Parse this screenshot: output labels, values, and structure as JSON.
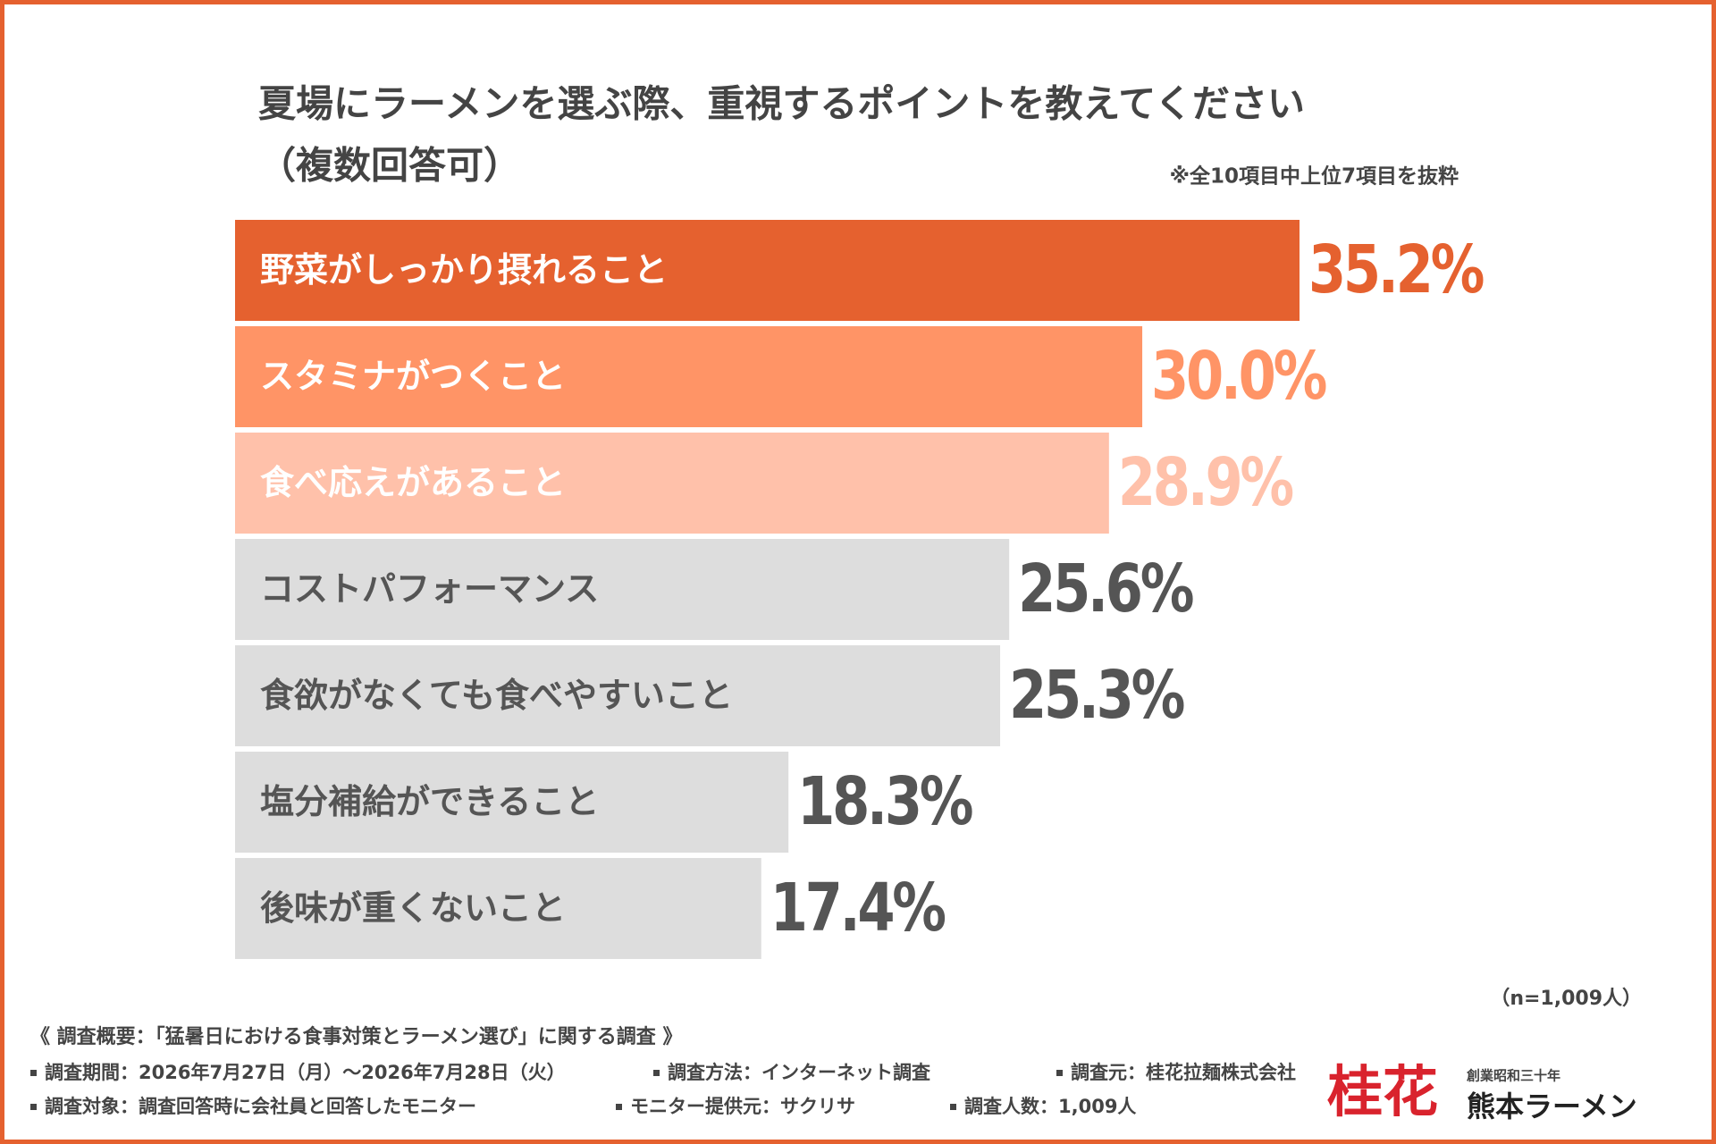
{
  "chart_data": {
    "type": "bar",
    "orientation": "horizontal",
    "title": "夏場にラーメンを選ぶ際、重視するポイントを教えてください",
    "subtitle": "（複数回答可）",
    "note": "※全10項目中上位7項目を抜粋",
    "categories": [
      "野菜がしっかり摂れること",
      "スタミナがつくこと",
      "食べ応えがあること",
      "コストパフォーマンス",
      "食欲がなくても食べやすいこと",
      "塩分補給ができること",
      "後味が重くないこと"
    ],
    "values": [
      35.2,
      30.0,
      28.9,
      25.6,
      25.3,
      18.3,
      17.4
    ],
    "value_labels": [
      "35.2%",
      "30.0%",
      "28.9%",
      "25.6%",
      "25.3%",
      "18.3%",
      "17.4%"
    ],
    "colors": [
      "#e5612f",
      "#ff9466",
      "#ffc1aa",
      "#dddddd",
      "#dddddd",
      "#dddddd",
      "#dddddd"
    ],
    "value_label_colors": [
      "#e5612f",
      "#ff9466",
      "#ffc1aa",
      "#555555",
      "#555555",
      "#555555",
      "#555555"
    ],
    "category_label_colors": [
      "#ffffff",
      "#ffffff",
      "#ffffff",
      "#555555",
      "#555555",
      "#555555",
      "#555555"
    ]
  },
  "footer": {
    "sample": "（n=1,009人）",
    "heading": "《 調査概要：「猛暑日における食事対策とラーメン選び」に関する調査 》",
    "items": [
      "調査期間：2026年7月27日（月）〜2026年7月28日（火）",
      "調査方法：インターネット調査",
      "調査元：桂花拉麺株式会社",
      "調査対象：調査回答時に会社員と回答したモニター",
      "モニター提供元：サクリサ",
      "調査人数：1,009人"
    ]
  },
  "logo": {
    "brand": "桂花",
    "tagline": "創業昭和三十年",
    "name": "熊本ラーメン"
  }
}
